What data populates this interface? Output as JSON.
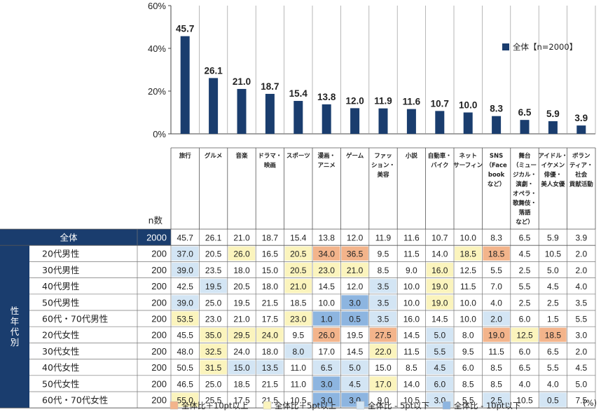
{
  "chart_data": {
    "type": "bar",
    "title": "",
    "ylim": [
      0,
      60
    ],
    "y_ticks": [
      "0%",
      "20%",
      "40%",
      "60%"
    ],
    "legend": "全体【n=2000】",
    "legend_position": "right",
    "series_color": "#1a3d6e",
    "categories": [
      "旅行",
      "グルメ",
      "音楽",
      "ドラマ・映画",
      "スポーツ",
      "漫画・アニメ",
      "ゲーム",
      "ファッション・美容",
      "小説",
      "自動車・バイク",
      "ネットサーフィン",
      "SNS(Facebookなど)",
      "舞台(ミュージカル・演劇・オペラ・歌舞伎・落語など)",
      "アイドル・イケメン俳優・美人女優",
      "ボランティア・社会貢献活動"
    ],
    "header_lines": [
      [
        "旅行"
      ],
      [
        "グルメ"
      ],
      [
        "音楽"
      ],
      [
        "ドラマ・",
        "映画"
      ],
      [
        "スポーツ"
      ],
      [
        "漫画・",
        "アニメ"
      ],
      [
        "ゲーム"
      ],
      [
        "ファッ",
        "ション・",
        "美容"
      ],
      [
        "小説"
      ],
      [
        "自動車・",
        "バイク"
      ],
      [
        "ネット",
        "サーフィン"
      ],
      [
        "SNS",
        "（Face",
        "book",
        "など）"
      ],
      [
        "舞台",
        "（ミュー",
        "ジカル・",
        "演劇・",
        "オペラ・",
        "歌舞伎・",
        "落語",
        "など）"
      ],
      [
        "アイドル・",
        "イケメン",
        "俳優・",
        "美人女優"
      ],
      [
        "ボラン",
        "ティア・",
        "社会",
        "貢献活動"
      ]
    ],
    "values": [
      45.7,
      26.1,
      21.0,
      18.7,
      15.4,
      13.8,
      12.0,
      11.9,
      11.6,
      10.7,
      10.0,
      8.3,
      6.5,
      5.9,
      3.9
    ],
    "value_labels": [
      "45.7",
      "26.1",
      "21.0",
      "18.7",
      "15.4",
      "13.8",
      "12.0",
      "11.9",
      "11.6",
      "10.7",
      "10.0",
      "8.3",
      "6.5",
      "5.9",
      "3.9"
    ],
    "table": {
      "n_header": "n数",
      "group_label": "性年代別",
      "unit": "(%)",
      "total": {
        "label": "全体",
        "n": "2000",
        "values": [
          "45.7",
          "26.1",
          "21.0",
          "18.7",
          "15.4",
          "13.8",
          "12.0",
          "11.9",
          "11.6",
          "10.7",
          "10.0",
          "8.3",
          "6.5",
          "5.9",
          "3.9"
        ]
      },
      "rows": [
        {
          "label": "20代男性",
          "n": "200",
          "values": [
            "37.0",
            "20.5",
            "26.0",
            "16.5",
            "20.5",
            "34.0",
            "36.5",
            "9.5",
            "11.5",
            "14.0",
            "18.5",
            "18.5",
            "4.5",
            "10.5",
            "2.0"
          ],
          "marks": [
            "l",
            "",
            "h",
            "",
            "h",
            "H",
            "H",
            "",
            "",
            "",
            "h",
            "H",
            "",
            "",
            ""
          ]
        },
        {
          "label": "30代男性",
          "n": "200",
          "values": [
            "39.0",
            "23.5",
            "18.0",
            "15.0",
            "20.5",
            "23.0",
            "21.0",
            "8.5",
            "9.0",
            "16.0",
            "12.5",
            "5.5",
            "2.5",
            "5.0",
            "2.0"
          ],
          "marks": [
            "l",
            "",
            "",
            "",
            "h",
            "h",
            "h",
            "",
            "",
            "h",
            "",
            "",
            "",
            "",
            ""
          ]
        },
        {
          "label": "40代男性",
          "n": "200",
          "values": [
            "42.5",
            "19.5",
            "20.5",
            "18.0",
            "21.0",
            "14.5",
            "12.0",
            "3.5",
            "10.0",
            "19.0",
            "11.5",
            "7.0",
            "5.5",
            "4.5",
            "4.0"
          ],
          "marks": [
            "",
            "l",
            "",
            "",
            "h",
            "",
            "",
            "l",
            "",
            "h",
            "",
            "",
            "",
            "",
            ""
          ]
        },
        {
          "label": "50代男性",
          "n": "200",
          "values": [
            "39.0",
            "25.0",
            "19.5",
            "21.5",
            "18.5",
            "10.0",
            "3.0",
            "3.5",
            "10.0",
            "19.0",
            "10.0",
            "4.0",
            "2.5",
            "2.5",
            "3.5"
          ],
          "marks": [
            "l",
            "",
            "",
            "",
            "",
            "",
            "L",
            "l",
            "",
            "h",
            "",
            "",
            "",
            "",
            ""
          ]
        },
        {
          "label": "60代・70代男性",
          "n": "200",
          "values": [
            "53.5",
            "23.0",
            "21.0",
            "17.5",
            "23.0",
            "1.0",
            "0.5",
            "3.5",
            "16.0",
            "14.5",
            "10.0",
            "2.0",
            "6.0",
            "1.5",
            "5.5"
          ],
          "marks": [
            "h",
            "",
            "",
            "",
            "h",
            "L",
            "L",
            "l",
            "",
            "",
            "",
            "l",
            "",
            "",
            ""
          ]
        },
        {
          "label": "20代女性",
          "n": "200",
          "values": [
            "45.5",
            "35.0",
            "29.5",
            "24.0",
            "9.5",
            "26.0",
            "19.5",
            "27.5",
            "14.5",
            "5.0",
            "8.0",
            "19.0",
            "12.5",
            "18.5",
            "3.0"
          ],
          "marks": [
            "",
            "h",
            "h",
            "h",
            "",
            "H",
            "",
            "H",
            "",
            "l",
            "",
            "H",
            "h",
            "H",
            ""
          ]
        },
        {
          "label": "30代女性",
          "n": "200",
          "values": [
            "48.0",
            "32.5",
            "24.0",
            "18.0",
            "8.0",
            "17.0",
            "14.5",
            "22.0",
            "11.5",
            "5.5",
            "9.5",
            "11.5",
            "6.0",
            "6.5",
            "2.0"
          ],
          "marks": [
            "",
            "h",
            "",
            "",
            "l",
            "",
            "",
            "h",
            "",
            "l",
            "",
            "",
            "",
            "",
            ""
          ]
        },
        {
          "label": "40代女性",
          "n": "200",
          "values": [
            "50.5",
            "31.5",
            "15.0",
            "13.5",
            "11.0",
            "6.5",
            "5.0",
            "15.0",
            "8.5",
            "4.5",
            "6.0",
            "8.5",
            "6.5",
            "5.5",
            "4.5"
          ],
          "marks": [
            "",
            "h",
            "l",
            "l",
            "",
            "l",
            "l",
            "",
            "",
            "l",
            "",
            "",
            "",
            "",
            ""
          ]
        },
        {
          "label": "50代女性",
          "n": "200",
          "values": [
            "46.5",
            "25.0",
            "18.5",
            "21.5",
            "11.0",
            "3.0",
            "4.5",
            "17.0",
            "14.0",
            "6.0",
            "8.5",
            "8.5",
            "4.0",
            "4.0",
            "5.0"
          ],
          "marks": [
            "",
            "",
            "",
            "",
            "",
            "L",
            "l",
            "h",
            "",
            "l",
            "",
            "",
            "",
            "",
            ""
          ]
        },
        {
          "label": "60代・70代女性",
          "n": "200",
          "values": [
            "55.0",
            "25.5",
            "17.5",
            "21.5",
            "10.5",
            "3.0",
            "3.0",
            "9.0",
            "10.5",
            "3.0",
            "5.5",
            "2.5",
            "10.5",
            "0.5",
            "7.5"
          ],
          "marks": [
            "h",
            "",
            "",
            "",
            "",
            "L",
            "L",
            "",
            "",
            "l",
            "",
            "l",
            "",
            "l",
            ""
          ]
        }
      ]
    },
    "highlight_legend": [
      {
        "key": "H",
        "label": "全体比＋10pt以上",
        "color": "#f3b48b"
      },
      {
        "key": "h",
        "label": "全体比＋5pt以上",
        "color": "#fbf4bd"
      },
      {
        "key": "l",
        "label": "全体比 - 5pt以下",
        "color": "#d3e5f4"
      },
      {
        "key": "L",
        "label": "全体比 - 10pt以下",
        "color": "#8db5e0"
      }
    ]
  }
}
